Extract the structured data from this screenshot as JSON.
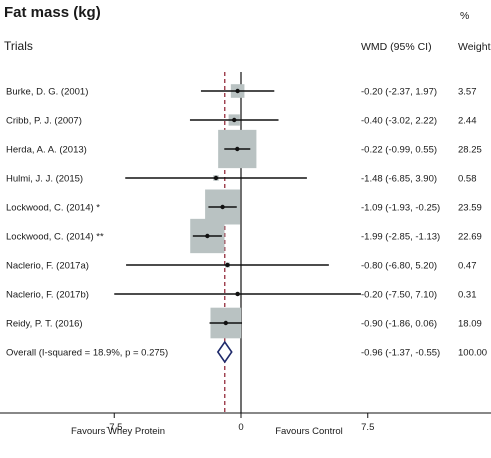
{
  "chart_data": {
    "type": "forest",
    "title": "Fat mass (kg)",
    "column_headers": {
      "trials": "Trials",
      "effect": "WMD (95% CI)",
      "weight_pct": "%",
      "weight": "Weight"
    },
    "studies": [
      {
        "label": "Burke, D. G. (2001)",
        "wmd": -0.2,
        "ci": [
          -2.37,
          1.97
        ],
        "ci_text": "-0.20 (-2.37, 1.97)",
        "weight": "3.57"
      },
      {
        "label": "Cribb, P. J. (2007)",
        "wmd": -0.4,
        "ci": [
          -3.02,
          2.22
        ],
        "ci_text": "-0.40 (-3.02, 2.22)",
        "weight": "2.44"
      },
      {
        "label": "Herda, A. A. (2013)",
        "wmd": -0.22,
        "ci": [
          -0.99,
          0.55
        ],
        "ci_text": "-0.22 (-0.99, 0.55)",
        "weight": "28.25"
      },
      {
        "label": "Hulmi, J. J. (2015)",
        "wmd": -1.48,
        "ci": [
          -6.85,
          3.9
        ],
        "ci_text": "-1.48 (-6.85, 3.90)",
        "weight": "0.58"
      },
      {
        "label": "Lockwood, C. (2014) *",
        "wmd": -1.09,
        "ci": [
          -1.93,
          -0.25
        ],
        "ci_text": "-1.09 (-1.93, -0.25)",
        "weight": "23.59"
      },
      {
        "label": "Lockwood, C. (2014) **",
        "wmd": -1.99,
        "ci": [
          -2.85,
          -1.13
        ],
        "ci_text": "-1.99 (-2.85, -1.13)",
        "weight": "22.69"
      },
      {
        "label": "Naclerio, F. (2017a)",
        "wmd": -0.8,
        "ci": [
          -6.8,
          5.2
        ],
        "ci_text": "-0.80 (-6.80, 5.20)",
        "weight": "0.47"
      },
      {
        "label": "Naclerio, F. (2017b)",
        "wmd": -0.2,
        "ci": [
          -7.5,
          7.1
        ],
        "ci_text": "-0.20 (-7.50, 7.10)",
        "weight": "0.31"
      },
      {
        "label": "Reidy, P. T. (2016)",
        "wmd": -0.9,
        "ci": [
          -1.86,
          0.06
        ],
        "ci_text": "-0.90 (-1.86, 0.06)",
        "weight": "18.09"
      }
    ],
    "overall": {
      "label": "Overall  (I-squared = 18.9%, p = 0.275)",
      "wmd": -0.96,
      "ci": [
        -1.37,
        -0.55
      ],
      "ci_text": "-0.96 (-1.37, -0.55)",
      "weight": "100.00"
    },
    "x_ticks": [
      {
        "value": -7.5,
        "label": "-7.5"
      },
      {
        "value": 0,
        "label": "0"
      },
      {
        "value": 7.5,
        "label": "7.5"
      }
    ],
    "xlim": [
      -11.5,
      14.5
    ],
    "favours_left": "Favours Whey Protein",
    "favours_right": "Favours Control",
    "colors": {
      "box": "#b9c2c2",
      "line": "#111111",
      "overall_line": "#8b1a2b",
      "diamond": "#1f2a6b"
    }
  }
}
